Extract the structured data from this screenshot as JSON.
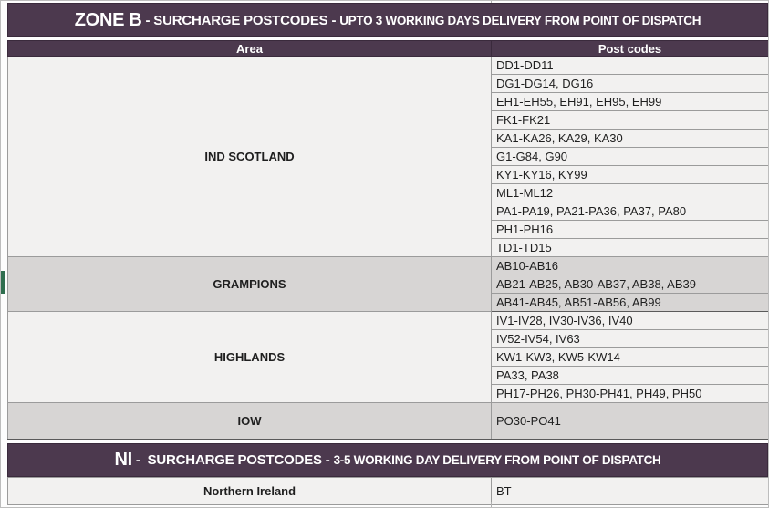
{
  "colors": {
    "header_band": "#4c394e",
    "band_text": "#ffffff",
    "row_light": "#f2f1f0",
    "row_gray": "#d7d5d4",
    "grid_border": "#9b9b9b",
    "body_text": "#1f1f1f",
    "green_marker": "#2f6e4e"
  },
  "zone_b": {
    "title_parts": [
      "ZONE B",
      " - SURCHARGE POSTCODES - ",
      "UPTO 3 WORKING DAYS DELIVERY FROM POINT OF DISPATCH"
    ],
    "columns": {
      "area": "Area",
      "postcodes": "Post codes"
    },
    "groups": [
      {
        "area": "IND SCOTLAND",
        "shade": "light",
        "rows": [
          "DD1-DD11",
          "DG1-DG14, DG16",
          "EH1-EH55, EH91, EH95, EH99",
          "FK1-FK21",
          "KA1-KA26, KA29, KA30",
          "G1-G84, G90",
          "KY1-KY16, KY99",
          "ML1-ML12",
          "PA1-PA19, PA21-PA36, PA37, PA80",
          "PH1-PH16",
          "TD1-TD15"
        ]
      },
      {
        "area": "GRAMPIONS",
        "shade": "gray",
        "rows": [
          "AB10-AB16",
          "AB21-AB25, AB30-AB37, AB38, AB39",
          "AB41-AB45, AB51-AB56, AB99"
        ]
      },
      {
        "area": "HIGHLANDS",
        "shade": "light",
        "rows": [
          "IV1-IV28, IV30-IV36, IV40",
          "IV52-IV54, IV63",
          "KW1-KW3, KW5-KW14",
          "PA33, PA38",
          "PH17-PH26, PH30-PH41, PH49, PH50"
        ]
      },
      {
        "area": "IOW",
        "shade": "gray",
        "rows": [
          "PO30-PO41"
        ]
      }
    ]
  },
  "ni": {
    "title_parts": [
      "NI",
      " -  SURCHARGE POSTCODES - ",
      "3-5 WORKING DAY DELIVERY FROM POINT OF DISPATCH"
    ],
    "area": "Northern Ireland",
    "postcode": "BT"
  }
}
